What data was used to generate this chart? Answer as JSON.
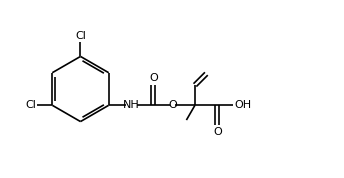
{
  "bg": "#ffffff",
  "lc": "#000000",
  "lw": 1.2,
  "fs": 8.0,
  "figsize": [
    3.44,
    1.78
  ],
  "dpi": 100,
  "xlim": [
    -0.5,
    10.5
  ],
  "ylim": [
    0.2,
    5.5
  ]
}
